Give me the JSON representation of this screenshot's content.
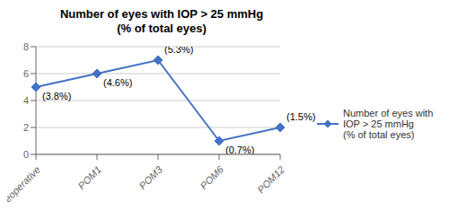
{
  "chart_data": {
    "type": "line",
    "title": "Number of eyes with IOP > 25 mmHg\n(% of total eyes)",
    "categories": [
      "Preoperative",
      "POM1",
      "POM3",
      "POM6",
      "POM12"
    ],
    "series": [
      {
        "name": "Number of eyes with\nIOP > 25 mmHg\n(% of total eyes)",
        "color": "#4472C4",
        "values": [
          5,
          6,
          7,
          1,
          2
        ],
        "marker": "diamond"
      }
    ],
    "annotations": [
      {
        "x": "Preoperative",
        "y": 5,
        "text": "(3.8%)"
      },
      {
        "x": "POM1",
        "y": 6,
        "text": "(4.6%)"
      },
      {
        "x": "POM3",
        "y": 7,
        "text": "(5.3%)"
      },
      {
        "x": "POM6",
        "y": 1,
        "text": "(0.7%)"
      },
      {
        "x": "POM12",
        "y": 2,
        "text": "(1.5%)"
      }
    ],
    "ylim": [
      0,
      8
    ],
    "yticks": [
      0,
      2,
      4,
      6,
      8
    ],
    "grid": true,
    "legend": "right"
  }
}
